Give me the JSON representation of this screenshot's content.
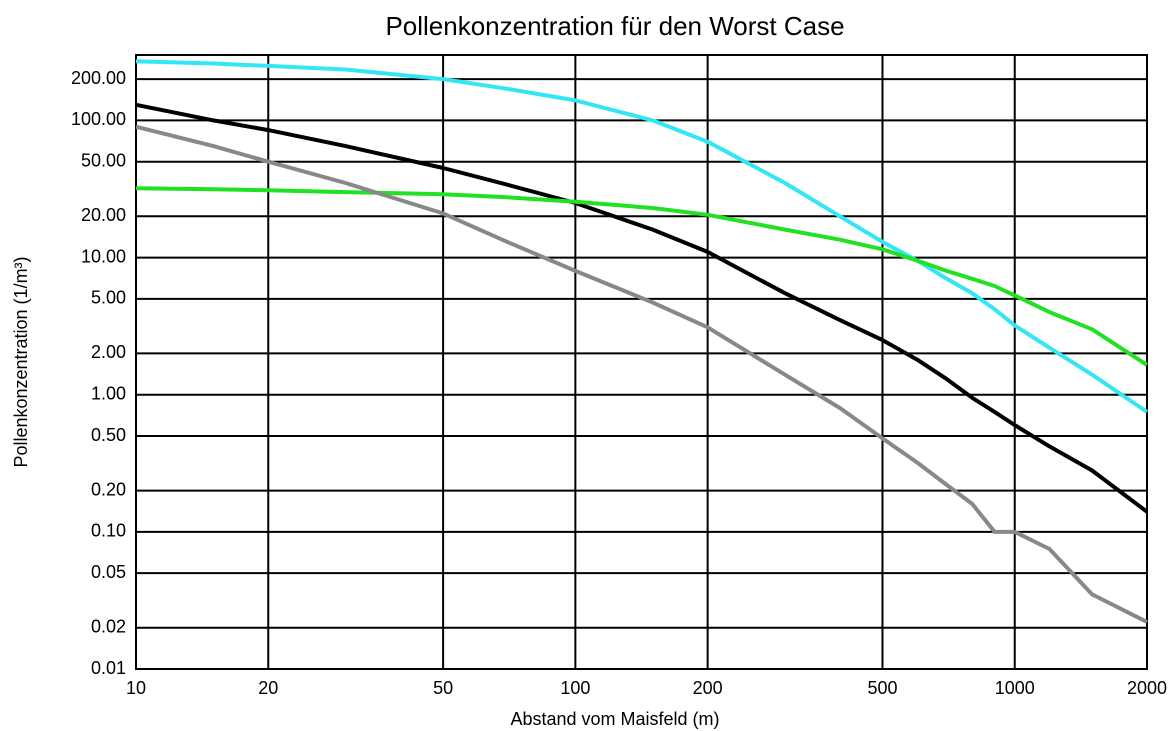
{
  "chart_data": {
    "type": "line",
    "title": "Pollenkonzentration für den Worst Case",
    "xlabel": "Abstand vom Maisfeld (m)",
    "ylabel": "Pollenkonzentration (1/m³)",
    "xscale": "log",
    "yscale": "log",
    "grid": true,
    "x": [
      10,
      15,
      20,
      30,
      50,
      70,
      100,
      150,
      200,
      300,
      400,
      500,
      600,
      700,
      800,
      900,
      1000,
      1200,
      1500,
      2000
    ],
    "series": [
      {
        "color": "#33e6f5",
        "values": [
          270,
          260,
          250,
          235,
          200,
          170,
          140,
          100,
          70,
          35,
          20,
          13,
          9.5,
          7,
          5.5,
          4.2,
          3.2,
          2.2,
          1.4,
          0.75
        ]
      },
      {
        "color": "#000000",
        "values": [
          130,
          100,
          85,
          65,
          45,
          34,
          25,
          16,
          11,
          5.5,
          3.5,
          2.5,
          1.8,
          1.3,
          0.95,
          0.75,
          0.6,
          0.42,
          0.28,
          0.14
        ]
      },
      {
        "color": "#22e022",
        "values": [
          32,
          31.5,
          31,
          30,
          29,
          27.5,
          25.5,
          23,
          20.5,
          16,
          13.5,
          11.5,
          9.5,
          8,
          7,
          6.2,
          5.3,
          4,
          3,
          1.65
        ]
      },
      {
        "color": "#888888",
        "values": [
          90,
          65,
          50,
          35,
          21,
          13,
          8,
          4.7,
          3.1,
          1.4,
          0.8,
          0.48,
          0.32,
          0.22,
          0.16,
          0.1,
          0.1,
          0.075,
          0.035,
          0.022
        ]
      }
    ],
    "xlim": [
      10,
      2000
    ],
    "xticks": [
      10,
      20,
      50,
      100,
      200,
      500,
      1000,
      2000
    ],
    "ylim": [
      0.01,
      300
    ],
    "yticks": [
      {
        "value": 0.01,
        "label": "0.01"
      },
      {
        "value": 0.02,
        "label": "0.02"
      },
      {
        "value": 0.05,
        "label": "0.05"
      },
      {
        "value": 0.1,
        "label": "0.10"
      },
      {
        "value": 0.2,
        "label": "0.20"
      },
      {
        "value": 0.5,
        "label": "0.50"
      },
      {
        "value": 1,
        "label": "1.00"
      },
      {
        "value": 2,
        "label": "2.00"
      },
      {
        "value": 5,
        "label": "5.00"
      },
      {
        "value": 10,
        "label": "10.00"
      },
      {
        "value": 20,
        "label": "20.00"
      },
      {
        "value": 50,
        "label": "50.00"
      },
      {
        "value": 100,
        "label": "100.00"
      },
      {
        "value": 200,
        "label": "200.00"
      }
    ]
  }
}
